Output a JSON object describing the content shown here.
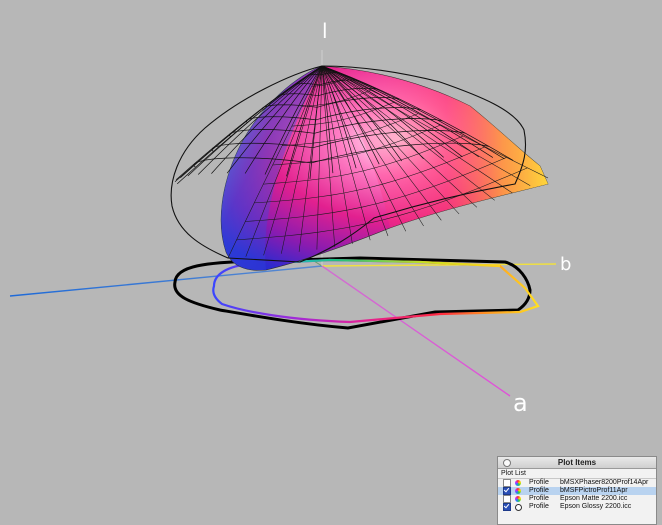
{
  "axes": {
    "l_label": "l",
    "b_label": "b",
    "a_label": "a"
  },
  "plot_items": {
    "title": "Plot Items",
    "list_header": "Plot List",
    "rows": [
      {
        "checked": false,
        "icon": "color-wheel-icon",
        "kind": "Profile",
        "name": "bMSXPhaser8200Prof14Apr",
        "selected": false
      },
      {
        "checked": true,
        "icon": "color-wheel-icon",
        "kind": "Profile",
        "name": "bMSFPictroProf11Apr",
        "selected": true
      },
      {
        "checked": false,
        "icon": "color-wheel-icon",
        "kind": "Profile",
        "name": "Epson Matte 2200.icc",
        "selected": false
      },
      {
        "checked": true,
        "icon": "outline-circle-icon",
        "kind": "Profile",
        "name": "Epson Glossy 2200.icc",
        "selected": false
      }
    ]
  }
}
